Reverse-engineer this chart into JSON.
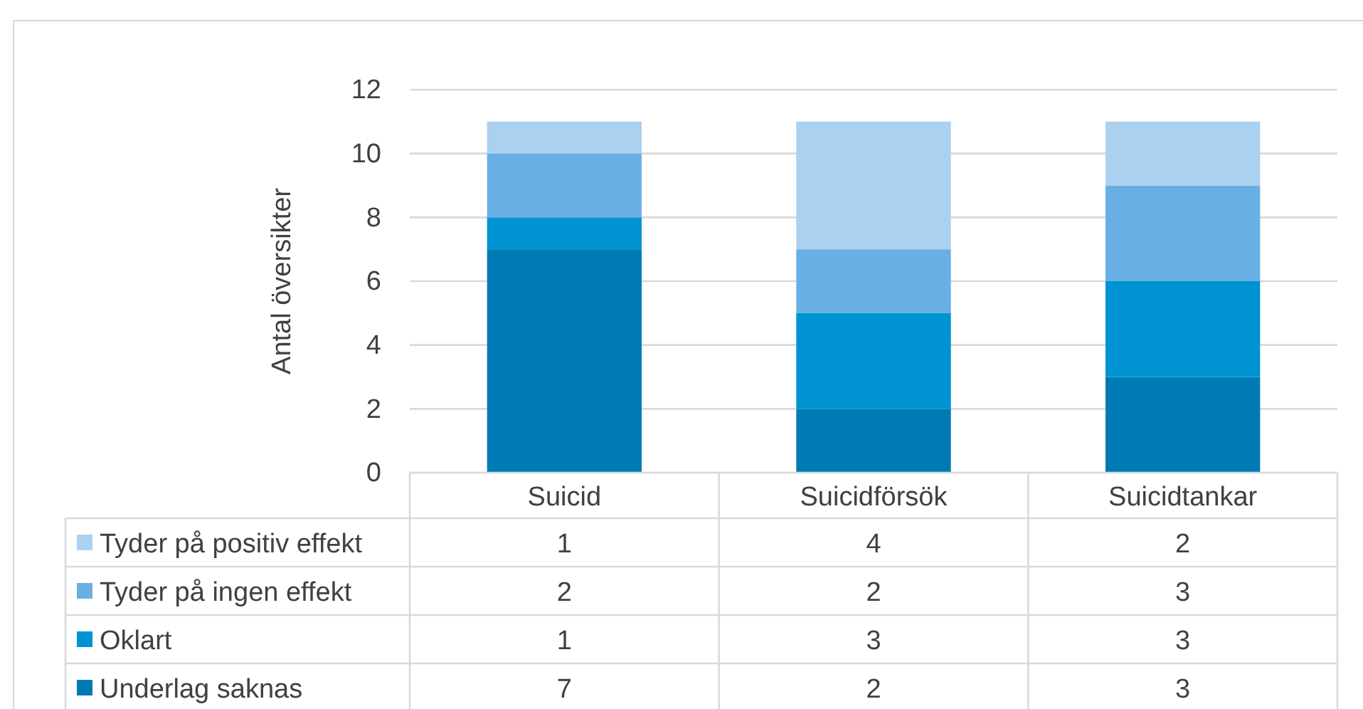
{
  "chart_data": {
    "type": "bar",
    "stacked": true,
    "ylabel": "Antal översikter",
    "categories": [
      "Suicid",
      "Suicidförsök",
      "Suicidtankar"
    ],
    "series": [
      {
        "name": "Underlag saknas",
        "color": "#007ab3",
        "values": [
          7,
          2,
          3
        ]
      },
      {
        "name": "Oklart",
        "color": "#0093d3",
        "values": [
          1,
          3,
          3
        ]
      },
      {
        "name": "Tyder på ingen effekt",
        "color": "#68b0e4",
        "values": [
          2,
          2,
          3
        ]
      },
      {
        "name": "Tyder på positiv effekt",
        "color": "#acd0f0",
        "values": [
          1,
          4,
          2
        ]
      }
    ],
    "ylim": [
      0,
      12
    ],
    "yticks": [
      0,
      2,
      4,
      6,
      8,
      10,
      12
    ],
    "grid": "y",
    "data_labels": true,
    "legend": "bottom"
  }
}
